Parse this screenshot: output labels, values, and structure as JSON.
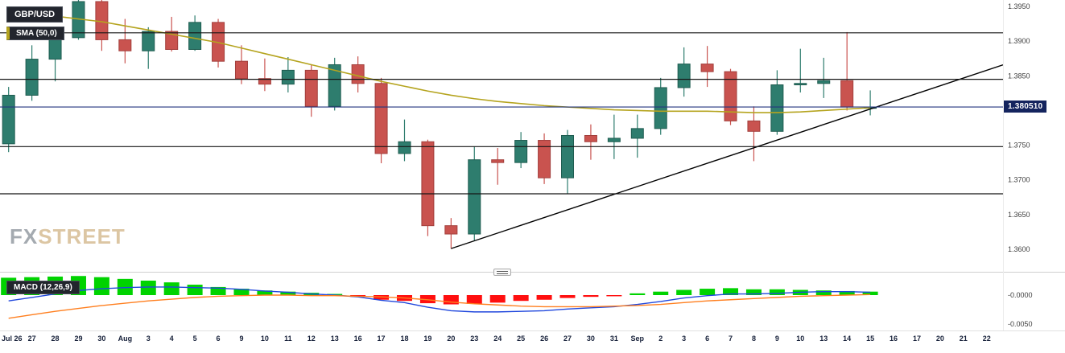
{
  "header": {
    "instrument": "GBP/USD",
    "sma_label": "SMA (50,0)"
  },
  "macd_panel": {
    "label": "MACD (12,26,9)",
    "axis_labels": [
      "-0.0000",
      "-0.0050"
    ],
    "axis_values": [
      0,
      -0.005
    ]
  },
  "price_axis": {
    "tick_labels": [
      "1.3950",
      "1.3900",
      "1.3850",
      "1.3750",
      "1.3700",
      "1.3650",
      "1.3600"
    ],
    "tick_values": [
      1.395,
      1.39,
      1.385,
      1.375,
      1.37,
      1.365,
      1.36
    ],
    "current_price_label": "1.380510"
  },
  "watermark": {
    "fx": "FX",
    "street": "STREET"
  },
  "colors": {
    "bull": "#2e7d6e",
    "bull_dark": "#1f5c50",
    "bear": "#c9534f",
    "bear_dark": "#a23f3c",
    "sma": "#b5a41f",
    "trendline": "#000000",
    "level": "#151515",
    "current_price_line": "#23357f",
    "hist_pos": "#00d300",
    "hist_neg": "#ff0f0f",
    "macd_line": "#2148dd",
    "signal_line": "#ff7f1f",
    "axis_text": "#3d3d3d",
    "date_text": "#17213a"
  },
  "chart_data": {
    "type": "candlestick",
    "title": "GBP/USD daily chart with SMA(50,0) overlay, ascending trendline and MACD(12,26,9)",
    "x_labels": [
      "Jul 26",
      "27",
      "28",
      "29",
      "30",
      "Aug",
      "3",
      "4",
      "5",
      "6",
      "9",
      "10",
      "11",
      "12",
      "13",
      "16",
      "17",
      "18",
      "19",
      "20",
      "23",
      "24",
      "25",
      "26",
      "27",
      "30",
      "31",
      "Sep",
      "2",
      "3",
      "6",
      "7",
      "8",
      "9",
      "10",
      "13",
      "14",
      "15",
      "16",
      "17",
      "20",
      "21",
      "22"
    ],
    "price_range": [
      1.36,
      1.395
    ],
    "levels": [
      1.3912,
      1.3845,
      1.3748,
      1.368
    ],
    "current_price": 1.38051,
    "candles": [
      {
        "d": "Jul 26",
        "o": 1.3752,
        "h": 1.3834,
        "l": 1.374,
        "c": 1.3822
      },
      {
        "d": "Jul 27",
        "o": 1.3822,
        "h": 1.3894,
        "l": 1.3814,
        "c": 1.3874
      },
      {
        "d": "Jul 28",
        "o": 1.3874,
        "h": 1.3914,
        "l": 1.3842,
        "c": 1.3905
      },
      {
        "d": "Jul 29",
        "o": 1.3905,
        "h": 1.3983,
        "l": 1.3902,
        "c": 1.3957
      },
      {
        "d": "Jul 30",
        "o": 1.3957,
        "h": 1.3984,
        "l": 1.3886,
        "c": 1.3902
      },
      {
        "d": "Aug 2",
        "o": 1.3902,
        "h": 1.3932,
        "l": 1.3868,
        "c": 1.3886
      },
      {
        "d": "Aug 3",
        "o": 1.3886,
        "h": 1.392,
        "l": 1.386,
        "c": 1.3914
      },
      {
        "d": "Aug 4",
        "o": 1.3914,
        "h": 1.3935,
        "l": 1.3885,
        "c": 1.3888
      },
      {
        "d": "Aug 5",
        "o": 1.3888,
        "h": 1.3937,
        "l": 1.3886,
        "c": 1.3927
      },
      {
        "d": "Aug 6",
        "o": 1.3927,
        "h": 1.3932,
        "l": 1.3862,
        "c": 1.3871
      },
      {
        "d": "Aug 9",
        "o": 1.3871,
        "h": 1.3894,
        "l": 1.3838,
        "c": 1.3846
      },
      {
        "d": "Aug 10",
        "o": 1.3846,
        "h": 1.3875,
        "l": 1.3828,
        "c": 1.3838
      },
      {
        "d": "Aug 11",
        "o": 1.3838,
        "h": 1.3877,
        "l": 1.3826,
        "c": 1.3858
      },
      {
        "d": "Aug 12",
        "o": 1.3858,
        "h": 1.3866,
        "l": 1.3791,
        "c": 1.3806
      },
      {
        "d": "Aug 13",
        "o": 1.3806,
        "h": 1.3876,
        "l": 1.38,
        "c": 1.3866
      },
      {
        "d": "Aug 16",
        "o": 1.3866,
        "h": 1.3878,
        "l": 1.3826,
        "c": 1.3839
      },
      {
        "d": "Aug 17",
        "o": 1.3839,
        "h": 1.3847,
        "l": 1.3724,
        "c": 1.3738
      },
      {
        "d": "Aug 18",
        "o": 1.3738,
        "h": 1.3787,
        "l": 1.3727,
        "c": 1.3755
      },
      {
        "d": "Aug 19",
        "o": 1.3755,
        "h": 1.3758,
        "l": 1.3619,
        "c": 1.3634
      },
      {
        "d": "Aug 20",
        "o": 1.3634,
        "h": 1.3645,
        "l": 1.3601,
        "c": 1.3622
      },
      {
        "d": "Aug 23",
        "o": 1.3622,
        "h": 1.3748,
        "l": 1.3612,
        "c": 1.3729
      },
      {
        "d": "Aug 24",
        "o": 1.3729,
        "h": 1.3746,
        "l": 1.3693,
        "c": 1.3725
      },
      {
        "d": "Aug 25",
        "o": 1.3725,
        "h": 1.3769,
        "l": 1.3717,
        "c": 1.3757
      },
      {
        "d": "Aug 26",
        "o": 1.3757,
        "h": 1.3767,
        "l": 1.3694,
        "c": 1.3703
      },
      {
        "d": "Aug 27",
        "o": 1.3703,
        "h": 1.3772,
        "l": 1.368,
        "c": 1.3764
      },
      {
        "d": "Aug 30",
        "o": 1.3764,
        "h": 1.378,
        "l": 1.3729,
        "c": 1.3755
      },
      {
        "d": "Aug 31",
        "o": 1.3755,
        "h": 1.3794,
        "l": 1.373,
        "c": 1.376
      },
      {
        "d": "Sep 1",
        "o": 1.376,
        "h": 1.3794,
        "l": 1.3732,
        "c": 1.3774
      },
      {
        "d": "Sep 2",
        "o": 1.3774,
        "h": 1.3847,
        "l": 1.3765,
        "c": 1.3833
      },
      {
        "d": "Sep 3",
        "o": 1.3833,
        "h": 1.3891,
        "l": 1.382,
        "c": 1.3867
      },
      {
        "d": "Sep 6",
        "o": 1.3867,
        "h": 1.3893,
        "l": 1.3834,
        "c": 1.3856
      },
      {
        "d": "Sep 7",
        "o": 1.3856,
        "h": 1.386,
        "l": 1.3779,
        "c": 1.3785
      },
      {
        "d": "Sep 8",
        "o": 1.3785,
        "h": 1.3806,
        "l": 1.3727,
        "c": 1.377
      },
      {
        "d": "Sep 9",
        "o": 1.377,
        "h": 1.3858,
        "l": 1.3765,
        "c": 1.3837
      },
      {
        "d": "Sep 10",
        "o": 1.3837,
        "h": 1.3889,
        "l": 1.3826,
        "c": 1.3839
      },
      {
        "d": "Sep 13",
        "o": 1.3839,
        "h": 1.3876,
        "l": 1.3818,
        "c": 1.3843
      },
      {
        "d": "Sep 14",
        "o": 1.3843,
        "h": 1.3913,
        "l": 1.38,
        "c": 1.3805
      },
      {
        "d": "Sep 15",
        "o": 1.3805,
        "h": 1.3829,
        "l": 1.3793,
        "c": 1.3805
      }
    ],
    "sma50": [
      1.3944,
      1.394,
      1.3936,
      1.3932,
      1.3928,
      1.3922,
      1.3916,
      1.391,
      1.3904,
      1.3898,
      1.389,
      1.3882,
      1.3874,
      1.3866,
      1.3858,
      1.385,
      1.3842,
      1.3835,
      1.3828,
      1.3822,
      1.3817,
      1.3813,
      1.381,
      1.3807,
      1.3805,
      1.3803,
      1.3801,
      1.38,
      1.3799,
      1.3799,
      1.3799,
      1.3798,
      1.3797,
      1.3797,
      1.3798,
      1.38,
      1.3802,
      1.3804
    ],
    "trendline": {
      "start_index": 19,
      "start_price": 1.3601,
      "end_index": 42,
      "end_price": 1.3858
    },
    "macd": {
      "histogram": [
        0.003,
        0.0031,
        0.0032,
        0.0033,
        0.0031,
        0.0028,
        0.0025,
        0.0022,
        0.0018,
        0.0014,
        0.0011,
        0.0008,
        0.0006,
        0.0004,
        0.0002,
        -0.0003,
        -0.0008,
        -0.001,
        -0.0014,
        -0.0016,
        -0.0015,
        -0.0013,
        -0.001,
        -0.0008,
        -0.0005,
        -0.0003,
        -0.0002,
        0.0003,
        0.0006,
        0.0009,
        0.0011,
        0.0012,
        0.001,
        0.001,
        0.0009,
        0.0008,
        0.0007,
        0.0006
      ],
      "macd_line": [
        -0.001,
        -0.0004,
        0.0002,
        0.0008,
        0.0011,
        0.0013,
        0.0014,
        0.0014,
        0.0013,
        0.0012,
        0.001,
        0.0007,
        0.0005,
        0.0002,
        0.0,
        -0.0003,
        -0.0009,
        -0.0013,
        -0.0021,
        -0.0027,
        -0.0029,
        -0.0029,
        -0.0028,
        -0.0027,
        -0.0024,
        -0.0022,
        -0.002,
        -0.0016,
        -0.0011,
        -0.0005,
        -0.0001,
        0.0002,
        0.0002,
        0.0003,
        0.0005,
        0.0006,
        0.0006,
        0.0005
      ],
      "signal_line": [
        -0.004,
        -0.0034,
        -0.0028,
        -0.0023,
        -0.0018,
        -0.0014,
        -0.001,
        -0.0007,
        -0.0004,
        -0.0002,
        -0.0001,
        0.0,
        0.0,
        -0.0001,
        -0.0001,
        -0.0002,
        -0.0003,
        -0.0005,
        -0.0008,
        -0.0012,
        -0.0015,
        -0.0017,
        -0.0019,
        -0.002,
        -0.002,
        -0.002,
        -0.0019,
        -0.0018,
        -0.0016,
        -0.0013,
        -0.001,
        -0.0008,
        -0.0006,
        -0.0004,
        -0.0002,
        -0.0001,
        0.0,
        0.0001
      ]
    }
  }
}
